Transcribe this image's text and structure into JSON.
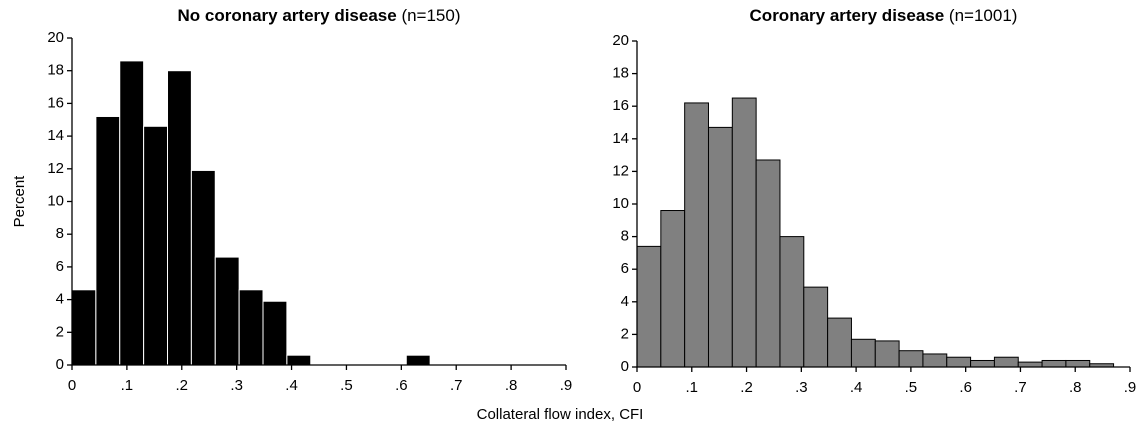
{
  "chart_data": [
    {
      "type": "histogram",
      "title": "No coronary artery disease",
      "title_note": "(n=150)",
      "ylabel": "Percent",
      "xlabel": "Collateral flow index, CFI",
      "color": "#000000",
      "edgecolor": "#ffffff",
      "bins": [
        0,
        0.0435,
        0.087,
        0.1305,
        0.174,
        0.2175,
        0.261,
        0.3045,
        0.348,
        0.3915,
        0.435,
        0.4785,
        0.522,
        0.5655,
        0.609,
        0.6525
      ],
      "values": [
        4.6,
        15.2,
        18.6,
        14.6,
        18,
        11.9,
        6.6,
        4.6,
        3.9,
        0.6,
        0,
        0,
        0,
        0,
        0.6
      ],
      "xlim": [
        0,
        0.9
      ],
      "xticks": [
        0,
        {
          "value": 0.1,
          "label": ".1"
        },
        {
          "value": 0.2,
          "label": ".2"
        },
        {
          "value": 0.3,
          "label": ".3"
        },
        {
          "value": 0.4,
          "label": ".4"
        },
        {
          "value": 0.5,
          "label": ".5"
        },
        {
          "value": 0.6,
          "label": ".6"
        },
        {
          "value": 0.7,
          "label": ".7"
        },
        {
          "value": 0.8,
          "label": ".8"
        },
        {
          "value": 0.9,
          "label": ".9"
        }
      ],
      "ylim": [
        0,
        20
      ],
      "yticks": [
        0,
        2,
        4,
        6,
        8,
        10,
        12,
        14,
        16,
        18,
        20
      ],
      "grid": false
    },
    {
      "type": "histogram",
      "title": "Coronary artery disease",
      "title_note": "(n=1001)",
      "color": "#808080",
      "edgecolor": "#000000",
      "bins": [
        0,
        0.0435,
        0.087,
        0.1305,
        0.174,
        0.2175,
        0.261,
        0.3045,
        0.348,
        0.3915,
        0.435,
        0.4785,
        0.522,
        0.5655,
        0.609,
        0.6525,
        0.696,
        0.7395,
        0.783,
        0.8265,
        0.87
      ],
      "values": [
        7.4,
        9.6,
        16.2,
        14.7,
        16.5,
        12.7,
        8.0,
        4.9,
        3.0,
        1.7,
        1.6,
        1.0,
        0.8,
        0.6,
        0.4,
        0.6,
        0.3,
        0.4,
        0.4,
        0.2
      ],
      "xlim": [
        0,
        0.9
      ],
      "xticks": [
        0,
        {
          "value": 0.1,
          "label": ".1"
        },
        {
          "value": 0.2,
          "label": ".2"
        },
        {
          "value": 0.3,
          "label": ".3"
        },
        {
          "value": 0.4,
          "label": ".4"
        },
        {
          "value": 0.5,
          "label": ".5"
        },
        {
          "value": 0.6,
          "label": ".6"
        },
        {
          "value": 0.7,
          "label": ".7"
        },
        {
          "value": 0.8,
          "label": ".8"
        },
        {
          "value": 0.9,
          "label": ".9"
        }
      ],
      "ylim": [
        0,
        20
      ],
      "yticks": [
        0,
        2,
        4,
        6,
        8,
        10,
        12,
        14,
        16,
        18,
        20
      ],
      "grid": false
    }
  ]
}
